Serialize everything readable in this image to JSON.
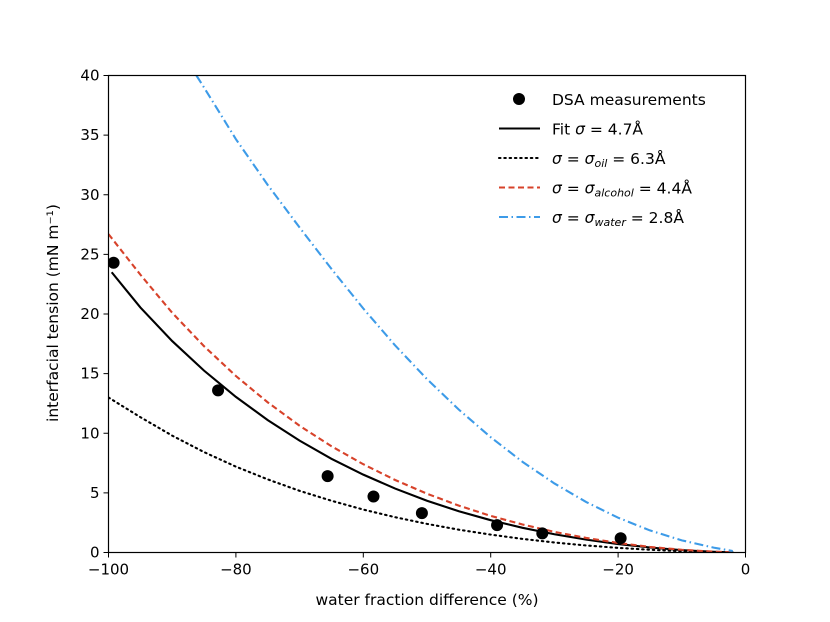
{
  "chart_data": {
    "type": "line",
    "xlabel": "water fraction difference (%)",
    "ylabel": "interfacial tension (mN m⁻¹)",
    "xlim": [
      -100,
      0
    ],
    "ylim": [
      0,
      40
    ],
    "xticks": [
      -100,
      -80,
      -60,
      -40,
      -20,
      0
    ],
    "xtick_labels": [
      "−100",
      "−80",
      "−60",
      "−40",
      "−20",
      "0"
    ],
    "yticks": [
      0,
      5,
      10,
      15,
      20,
      25,
      30,
      35,
      40
    ],
    "ytick_labels": [
      "0",
      "5",
      "10",
      "15",
      "20",
      "25",
      "30",
      "35",
      "40"
    ],
    "grid": false,
    "legend_position": "top-right",
    "series": [
      {
        "name": "DSA measurements",
        "label_text": "DSA measurements",
        "kind": "scatter",
        "color": "#000000",
        "x": [
          -99.2,
          -82.8,
          -65.6,
          -58.4,
          -50.8,
          -39.0,
          -31.9,
          -19.6
        ],
        "y": [
          24.3,
          13.6,
          6.4,
          4.7,
          3.3,
          2.3,
          1.6,
          1.2
        ]
      },
      {
        "name": "Fit sigma = 4.7 A",
        "label_prefix": "Fit ",
        "label_sigma": "σ",
        "label_sub": "",
        "label_value": " = 4.7Å",
        "kind": "line",
        "style": "solid",
        "color": "#000000",
        "x": [
          -99.5,
          -95,
          -90,
          -85,
          -80,
          -75,
          -70,
          -65,
          -60,
          -55,
          -50,
          -45,
          -40,
          -35,
          -30,
          -25,
          -20,
          -15,
          -10,
          -5,
          -2
        ],
        "y": [
          23.5,
          20.55,
          17.73,
          15.25,
          13.05,
          11.1,
          9.38,
          7.86,
          6.53,
          5.36,
          4.34,
          3.46,
          2.71,
          2.07,
          1.53,
          1.08,
          0.71,
          0.42,
          0.2,
          0.06,
          0.01
        ]
      },
      {
        "name": "sigma = sigma_oil = 6.3 A",
        "label_prefix": "",
        "label_sigma": "σ",
        "label_sub": "oil",
        "label_value": " = 6.3Å",
        "kind": "line",
        "style": "dotted",
        "color": "#000000",
        "x": [
          -100,
          -95,
          -90,
          -85,
          -80,
          -75,
          -70,
          -65,
          -60,
          -55,
          -50,
          -45,
          -40,
          -35,
          -30,
          -25,
          -20,
          -15,
          -10,
          -5,
          -2
        ],
        "y": [
          13.0,
          11.35,
          9.8,
          8.42,
          7.2,
          6.13,
          5.17,
          4.34,
          3.6,
          2.96,
          2.4,
          1.91,
          1.5,
          1.14,
          0.84,
          0.59,
          0.39,
          0.23,
          0.11,
          0.03,
          0.01
        ]
      },
      {
        "name": "sigma = sigma_alcohol = 4.4 A",
        "label_prefix": "",
        "label_sigma": "σ",
        "label_sub": "alcohol",
        "label_value": " = 4.4Å",
        "kind": "line",
        "style": "dashed",
        "color": "#d7422a",
        "x": [
          -100,
          -95,
          -90,
          -85,
          -80,
          -75,
          -70,
          -65,
          -60,
          -55,
          -50,
          -45,
          -40,
          -35,
          -30,
          -25,
          -20,
          -15,
          -10,
          -5,
          -2
        ],
        "y": [
          26.7,
          23.3,
          20.1,
          17.3,
          14.8,
          12.59,
          10.63,
          8.91,
          7.4,
          6.08,
          4.93,
          3.93,
          3.07,
          2.35,
          1.73,
          1.22,
          0.8,
          0.47,
          0.23,
          0.07,
          0.01
        ]
      },
      {
        "name": "sigma = sigma_water = 2.8 A",
        "label_prefix": "",
        "label_sigma": "σ",
        "label_sub": "water",
        "label_value": " = 2.8Å",
        "kind": "line",
        "style": "dashdot",
        "color": "#3d9be8",
        "x": [
          -86.2,
          -85,
          -80,
          -75,
          -70,
          -65,
          -60,
          -55,
          -50,
          -45,
          -40,
          -35,
          -30,
          -25,
          -20,
          -15,
          -10,
          -5,
          -2
        ],
        "y": [
          40.0,
          38.99,
          34.66,
          30.82,
          27.25,
          23.78,
          20.46,
          17.36,
          14.54,
          11.98,
          9.67,
          7.6,
          5.79,
          4.23,
          2.92,
          1.85,
          1.02,
          0.41,
          0.12
        ]
      }
    ]
  }
}
